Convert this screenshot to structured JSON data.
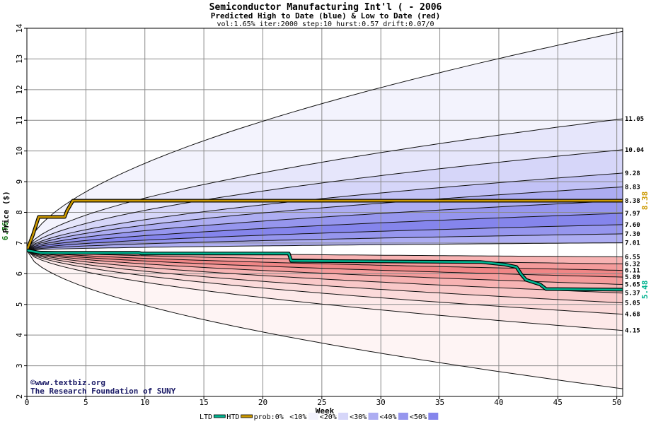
{
  "chart_data": {
    "type": "area",
    "title": "Semiconductor Manufacturing Int'l ( - 2006",
    "subtitle": "Predicted High to Date (blue) &  Low to Date (red)",
    "params": "vol:1.65% iter:2000 step:10 hurst:0.57 drift:0.07/0",
    "xlabel": "Week",
    "ylabel": "Price ($)",
    "xlim": [
      0,
      50.5
    ],
    "ylim": [
      2,
      14
    ],
    "x_ticks": [
      0,
      5,
      10,
      15,
      20,
      25,
      30,
      35,
      40,
      45,
      50
    ],
    "y_ticks": [
      2,
      3,
      4,
      5,
      6,
      7,
      8,
      9,
      10,
      11,
      12,
      13,
      14
    ],
    "start_price": 6.76,
    "start_label": "6.76",
    "grid": true,
    "x_grid": [
      0,
      5,
      10,
      15,
      20,
      25,
      30,
      35,
      40,
      45,
      50
    ],
    "y_grid": [
      2,
      3,
      4,
      5,
      6,
      7,
      8,
      9,
      10,
      11,
      12,
      13,
      14
    ],
    "high_quantiles": [
      {
        "end": 13.9,
        "label": ""
      },
      {
        "end": 11.05,
        "label": "11.05"
      },
      {
        "end": 10.04,
        "label": "10.04"
      },
      {
        "end": 9.28,
        "label": "9.28"
      },
      {
        "end": 8.83,
        "label": "8.83"
      },
      {
        "end": 8.38,
        "label": "8.38"
      },
      {
        "end": 7.97,
        "label": "7.97"
      },
      {
        "end": 7.6,
        "label": "7.60"
      },
      {
        "end": 7.3,
        "label": "7.30"
      },
      {
        "end": 7.01,
        "label": "7.01"
      }
    ],
    "low_quantiles": [
      {
        "end": 6.55,
        "label": "6.55"
      },
      {
        "end": 6.32,
        "label": "6.32"
      },
      {
        "end": 6.11,
        "label": "6.11"
      },
      {
        "end": 5.89,
        "label": "5.89"
      },
      {
        "end": 5.65,
        "label": "5.65"
      },
      {
        "end": 5.37,
        "label": "5.37"
      },
      {
        "end": 5.05,
        "label": "5.05"
      },
      {
        "end": 4.68,
        "label": "4.68"
      },
      {
        "end": 4.15,
        "label": "4.15"
      },
      {
        "end": 2.25,
        "label": ""
      }
    ],
    "high_fills": [
      "#f3f3fd",
      "#e6e6fb",
      "#d6d6f9",
      "#c2c2f6",
      "#adadf2",
      "#9696ee",
      "#8585ec",
      "#9696ee",
      "#adadf2"
    ],
    "low_fills": [
      "#f7b3b3",
      "#f49b9b",
      "#f08686",
      "#f49b9b",
      "#f7b3b3",
      "#f9c8c8",
      "#fbdada",
      "#fde9e9",
      "#fef4f4"
    ],
    "htd_series": {
      "name": "HTD",
      "color": "#cc9900",
      "end_label": "8.38",
      "points": [
        [
          0,
          6.76
        ],
        [
          0.5,
          7.25
        ],
        [
          1,
          7.85
        ],
        [
          3.2,
          7.85
        ],
        [
          3.4,
          8.05
        ],
        [
          3.9,
          8.38
        ],
        [
          50.5,
          8.38
        ]
      ]
    },
    "ltd_series": {
      "name": "LTD",
      "color": "#00b38f",
      "end_label": "5.48",
      "points": [
        [
          0,
          6.76
        ],
        [
          1.2,
          6.68
        ],
        [
          9.5,
          6.68
        ],
        [
          9.7,
          6.66
        ],
        [
          22.2,
          6.66
        ],
        [
          22.4,
          6.42
        ],
        [
          31,
          6.4
        ],
        [
          38.5,
          6.38
        ],
        [
          40.5,
          6.3
        ],
        [
          41.5,
          6.22
        ],
        [
          41.9,
          5.98
        ],
        [
          42.3,
          5.8
        ],
        [
          43.5,
          5.65
        ],
        [
          44,
          5.5
        ],
        [
          50.5,
          5.48
        ]
      ]
    },
    "watermark": [
      "©www.textbiz.org",
      "The Research Foundation of SUNY"
    ],
    "legend": {
      "placement": "bottom",
      "items": [
        {
          "label": "LTD",
          "swatch": "#00b38f"
        },
        {
          "label": "HTD",
          "swatch": "#cc9900"
        },
        {
          "label": "prob:0%",
          "swatch": ""
        },
        {
          "label": "<10%",
          "swatch": "#f3f3fd"
        },
        {
          "label": "<20%",
          "swatch": "#d6d6f9"
        },
        {
          "label": "<30%",
          "swatch": "#adadf2"
        },
        {
          "label": "<40%",
          "swatch": "#9696ee"
        },
        {
          "label": "<50%",
          "swatch": "#8585ec"
        }
      ]
    }
  }
}
